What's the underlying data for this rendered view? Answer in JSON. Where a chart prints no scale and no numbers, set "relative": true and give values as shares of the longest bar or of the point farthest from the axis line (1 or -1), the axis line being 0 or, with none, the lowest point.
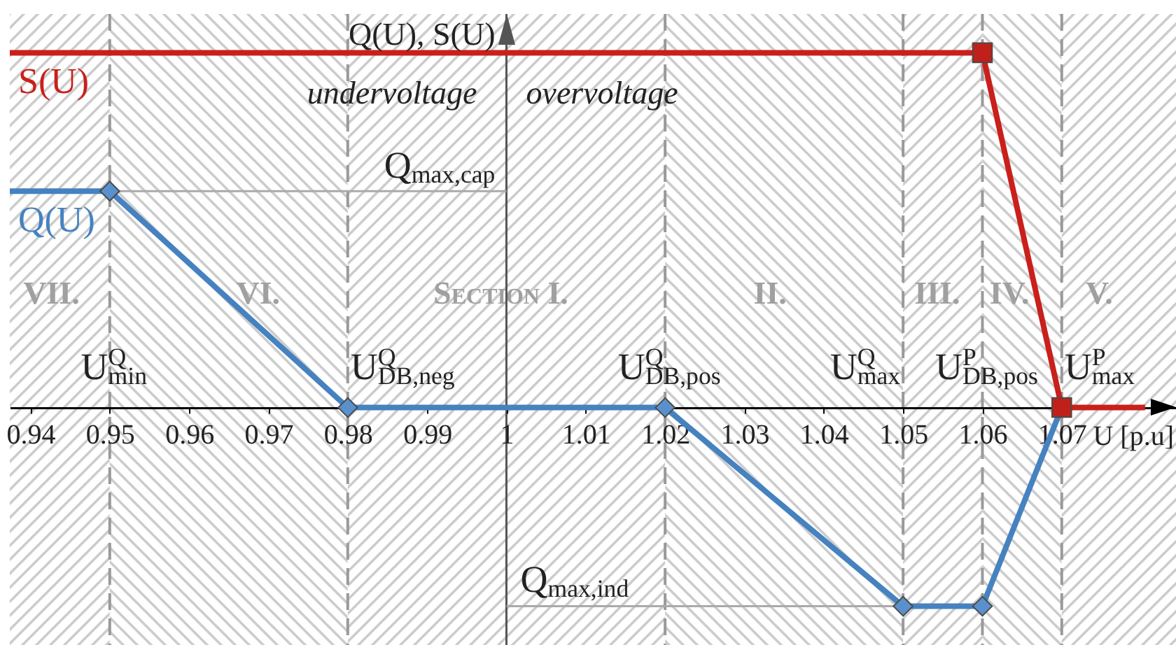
{
  "chart_data": {
    "type": "line",
    "relative": true,
    "xlabel": "U [p.u]",
    "ylabel": "Q(U), S(U)",
    "xlim": [
      0.9374,
      1.0844
    ],
    "xticks": [
      0.94,
      0.95,
      0.96,
      0.97,
      0.98,
      0.99,
      1,
      1.01,
      1.02,
      1.03,
      1.04,
      1.05,
      1.06,
      1.07
    ],
    "series": [
      {
        "name": "Q(U)",
        "color": "#4682c0",
        "x": [
          0.9374,
          0.95,
          0.98,
          1.02,
          1.05,
          1.06,
          1.07
        ],
        "values": [
          0.61,
          0.61,
          0,
          0,
          -0.56,
          -0.56,
          0
        ]
      },
      {
        "type": "scatter",
        "marker": "diamond",
        "color": "#5a90cc",
        "x": [
          0.95,
          0.98,
          1.02,
          1.05,
          1.06
        ],
        "values": [
          0.61,
          0,
          0,
          -0.56,
          -0.56
        ]
      },
      {
        "name": "S(U)",
        "color": "#c9201b",
        "x": [
          0.9374,
          1.06,
          1.07,
          1.0805
        ],
        "values": [
          1,
          1,
          0,
          0
        ]
      },
      {
        "type": "scatter",
        "marker": "square",
        "color": "#c0201a",
        "x": [
          1.06,
          1.07
        ],
        "values": [
          1,
          0
        ]
      }
    ],
    "ref_lines": [
      {
        "axis": "x",
        "value": 0.95,
        "label": "U$^{Q}$$_{min}$",
        "color": "#9a9a9a",
        "line_style": "dashed"
      },
      {
        "axis": "x",
        "value": 0.98,
        "label": "U$^{Q}$$_{DB,neg}$",
        "color": "#9a9a9a",
        "line_style": "dashed"
      },
      {
        "axis": "x",
        "value": 1.02,
        "label": "U$^{Q}$$_{DB,pos}$",
        "color": "#9a9a9a",
        "line_style": "dashed"
      },
      {
        "axis": "x",
        "value": 1.05,
        "label": "U$^{Q}$$_{max}$",
        "color": "#9a9a9a",
        "line_style": "dashed"
      },
      {
        "axis": "x",
        "value": 1.06,
        "label": "U$^{P}$$_{DB,pos}$",
        "color": "#9a9a9a",
        "line_style": "dashed"
      },
      {
        "axis": "x",
        "value": 1.07,
        "label": "U$^{P}$$_{max}$",
        "color": "#9a9a9a",
        "line_style": "dashed"
      },
      {
        "axis": "x",
        "value": 1,
        "color": "#555555",
        "line_style": "solid"
      },
      {
        "axis": "y",
        "value": 0.61,
        "label": "Q$_{max,cap}$",
        "color": "#aaaaaa",
        "line_style": "solid"
      },
      {
        "axis": "y",
        "value": -0.56,
        "label": "Q$_{max,ind}$",
        "color": "#aaaaaa",
        "line_style": "solid"
      }
    ],
    "bands": [
      {
        "axis": "x",
        "from": 0.9374,
        "to": 0.95,
        "label": "VII.",
        "color": "#cccccc"
      },
      {
        "axis": "x",
        "from": 0.95,
        "to": 0.98,
        "label": "VI.",
        "color": "#cccccc"
      },
      {
        "axis": "x",
        "from": 0.98,
        "to": 1.02,
        "label": "Section I.",
        "color": "#cccccc"
      },
      {
        "axis": "x",
        "from": 1.02,
        "to": 1.05,
        "label": "II.",
        "color": "#cccccc"
      },
      {
        "axis": "x",
        "from": 1.05,
        "to": 1.06,
        "label": "III.",
        "color": "#cccccc"
      },
      {
        "axis": "x",
        "from": 1.06,
        "to": 1.07,
        "label": "IV.",
        "color": "#cccccc"
      },
      {
        "axis": "x",
        "from": 1.07,
        "to": 1.0844,
        "label": "V.",
        "color": "#cccccc"
      }
    ],
    "annotations": [
      "undervoltage",
      "overvoltage"
    ]
  }
}
